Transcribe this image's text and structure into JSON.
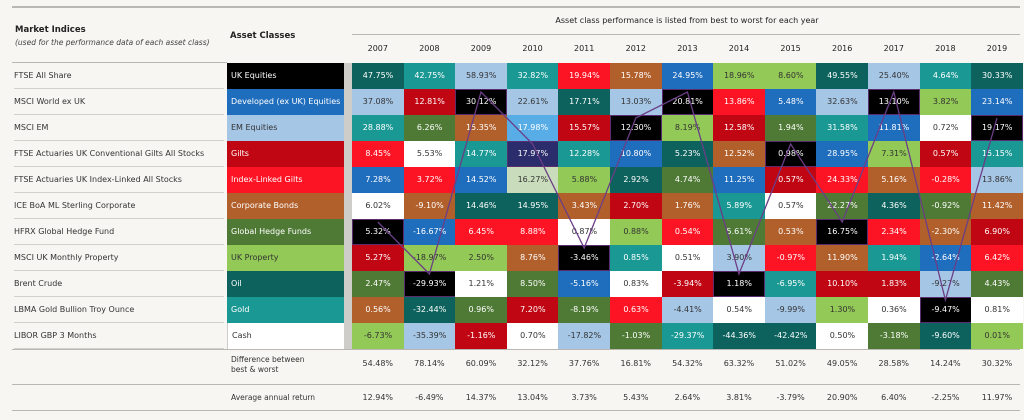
{
  "header": {
    "left_title": "Market Indices",
    "left_subtitle": "(used for the performance data of each asset class)",
    "asset_title": "Asset Classes",
    "table_title": "Asset class performance is listed from best to worst for each year"
  },
  "palette": {
    "UK": "#000000",
    "DEV": "#1f6dbd",
    "EM": "#a6c6e6",
    "GLT": "#bf0612",
    "ILG": "#fc1424",
    "CB": "#b1602b",
    "HF": "#4e7a35",
    "PR": "#93c957",
    "OIL": "#0d625d",
    "GLD": "#1a9893",
    "CSH": "#ffffff",
    "line": "#6b3e86"
  },
  "assets": [
    {
      "code": "UK",
      "index": "FTSE All Share",
      "label": "UK Equities"
    },
    {
      "code": "DEV",
      "index": "MSCI World ex UK",
      "label": "Developed (ex UK) Equities"
    },
    {
      "code": "EM",
      "index": "MSCI EM",
      "label": "EM Equities"
    },
    {
      "code": "GLT",
      "index": "FTSE Actuaries UK Conventional Gilts All Stocks",
      "label": "Gilts"
    },
    {
      "code": "ILG",
      "index": "FTSE Actuaries UK Index-Linked All Stocks",
      "label": "Index-Linked Gilts"
    },
    {
      "code": "CB",
      "index": "ICE BoA ML Sterling Corporate",
      "label": "Corporate Bonds"
    },
    {
      "code": "HF",
      "index": "HFRX Global Hedge Fund",
      "label": "Global Hedge Funds"
    },
    {
      "code": "PR",
      "index": "MSCI UK Monthly Property",
      "label": "UK Property"
    },
    {
      "code": "OIL",
      "index": "Brent Crude",
      "label": "Oil"
    },
    {
      "code": "GLD",
      "index": "LBMA Gold Bullion Troy Ounce",
      "label": "Gold"
    },
    {
      "code": "CSH",
      "index": "LIBOR GBP 3 Months",
      "label": "Cash"
    }
  ],
  "footer": {
    "diff_label_1": "Difference between",
    "diff_label_2": "best & worst",
    "avg_label": "Average annual return"
  },
  "chart_data": {
    "type": "table",
    "title": "Asset class performance is listed from best to worst for each year",
    "highlight_line_asset": "UK",
    "years": [
      "2007",
      "2008",
      "2009",
      "2010",
      "2011",
      "2012",
      "2013",
      "2014",
      "2015",
      "2016",
      "2017",
      "2018",
      "2019"
    ],
    "columns": [
      [
        [
          "47.75%",
          "OIL"
        ],
        [
          "37.08%",
          "EM"
        ],
        [
          "28.88%",
          "GLD"
        ],
        [
          "8.45%",
          "ILG"
        ],
        [
          "7.28%",
          "DEV"
        ],
        [
          "6.02%",
          "CSH"
        ],
        [
          "5.32%",
          "UK"
        ],
        [
          "5.27%",
          "GLT"
        ],
        [
          "2.47%",
          "HF"
        ],
        [
          "0.56%",
          "CB"
        ],
        [
          "-6.73%",
          "PR"
        ]
      ],
      [
        [
          "42.75%",
          "GLD"
        ],
        [
          "12.81%",
          "GLT"
        ],
        [
          "6.26%",
          "HF"
        ],
        [
          "5.53%",
          "CSH"
        ],
        [
          "3.72%",
          "ILG"
        ],
        [
          "-9.10%",
          "CB"
        ],
        [
          "-16.67%",
          "DEV"
        ],
        [
          "-18.97%",
          "PR"
        ],
        [
          "-29.93%",
          "UK"
        ],
        [
          "-32.44%",
          "OIL"
        ],
        [
          "-35.39%",
          "EM"
        ]
      ],
      [
        [
          "58.93%",
          "EM"
        ],
        [
          "30.12%",
          "UK"
        ],
        [
          "15.35%",
          "CB"
        ],
        [
          "14.77%",
          "GLD"
        ],
        [
          "14.52%",
          "DEV"
        ],
        [
          "14.46%",
          "OIL"
        ],
        [
          "6.45%",
          "ILG"
        ],
        [
          "2.50%",
          "PR"
        ],
        [
          "1.21%",
          "CSH"
        ],
        [
          "0.96%",
          "HF"
        ],
        [
          "-1.16%",
          "GLT"
        ]
      ],
      [
        [
          "32.82%",
          "GLD"
        ],
        [
          "22.61%",
          "EM"
        ],
        [
          "17.98%",
          "DEV",
          "#58ade6"
        ],
        [
          "17.97%",
          "UK",
          "#2a2c6c"
        ],
        [
          "16.27%",
          "PR",
          "#c9dcbb"
        ],
        [
          "14.95%",
          "OIL"
        ],
        [
          "8.88%",
          "ILG"
        ],
        [
          "8.76%",
          "CB"
        ],
        [
          "8.50%",
          "HF"
        ],
        [
          "7.20%",
          "GLT"
        ],
        [
          "0.70%",
          "CSH"
        ]
      ],
      [
        [
          "19.94%",
          "ILG"
        ],
        [
          "17.71%",
          "OIL"
        ],
        [
          "15.57%",
          "GLT"
        ],
        [
          "12.28%",
          "GLD"
        ],
        [
          "5.88%",
          "PR"
        ],
        [
          "3.43%",
          "CB"
        ],
        [
          "0.87%",
          "CSH"
        ],
        [
          "-3.46%",
          "UK"
        ],
        [
          "-5.16%",
          "DEV"
        ],
        [
          "-8.19%",
          "HF"
        ],
        [
          "-17.82%",
          "EM"
        ]
      ],
      [
        [
          "15.78%",
          "CB"
        ],
        [
          "13.03%",
          "EM"
        ],
        [
          "12.30%",
          "UK"
        ],
        [
          "10.80%",
          "DEV"
        ],
        [
          "2.92%",
          "OIL"
        ],
        [
          "2.70%",
          "GLT"
        ],
        [
          "0.88%",
          "PR"
        ],
        [
          "0.85%",
          "GLD"
        ],
        [
          "0.83%",
          "CSH"
        ],
        [
          "0.63%",
          "ILG"
        ],
        [
          "-1.03%",
          "HF"
        ]
      ],
      [
        [
          "24.95%",
          "DEV"
        ],
        [
          "20.81%",
          "UK"
        ],
        [
          "8.19%",
          "PR"
        ],
        [
          "5.23%",
          "OIL"
        ],
        [
          "4.74%",
          "HF"
        ],
        [
          "1.76%",
          "CB"
        ],
        [
          "0.54%",
          "ILG"
        ],
        [
          "0.51%",
          "CSH"
        ],
        [
          "-3.94%",
          "GLT"
        ],
        [
          "-4.41%",
          "EM"
        ],
        [
          "-29.37%",
          "GLD"
        ]
      ],
      [
        [
          "18.96%",
          "PR"
        ],
        [
          "13.86%",
          "ILG"
        ],
        [
          "12.58%",
          "GLT"
        ],
        [
          "12.52%",
          "CB"
        ],
        [
          "11.25%",
          "DEV"
        ],
        [
          "5.89%",
          "GLD"
        ],
        [
          "5.61%",
          "HF"
        ],
        [
          "3.90%",
          "EM"
        ],
        [
          "1.18%",
          "UK"
        ],
        [
          "0.54%",
          "CSH"
        ],
        [
          "-44.36%",
          "OIL"
        ]
      ],
      [
        [
          "8.60%",
          "PR"
        ],
        [
          "5.48%",
          "DEV"
        ],
        [
          "1.94%",
          "HF"
        ],
        [
          "0.98%",
          "UK"
        ],
        [
          "0.57%",
          "GLT"
        ],
        [
          "0.57%",
          "CSH"
        ],
        [
          "0.53%",
          "CB"
        ],
        [
          "-0.97%",
          "ILG"
        ],
        [
          "-6.95%",
          "GLD"
        ],
        [
          "-9.99%",
          "EM"
        ],
        [
          "-42.42%",
          "OIL"
        ]
      ],
      [
        [
          "49.55%",
          "OIL"
        ],
        [
          "32.63%",
          "EM"
        ],
        [
          "31.58%",
          "GLD"
        ],
        [
          "28.95%",
          "DEV"
        ],
        [
          "24.33%",
          "ILG"
        ],
        [
          "22.27%",
          "HF"
        ],
        [
          "16.75%",
          "UK"
        ],
        [
          "11.90%",
          "CB"
        ],
        [
          "10.10%",
          "GLT"
        ],
        [
          "1.30%",
          "PR"
        ],
        [
          "0.50%",
          "CSH"
        ]
      ],
      [
        [
          "25.40%",
          "EM"
        ],
        [
          "13.10%",
          "UK"
        ],
        [
          "11.81%",
          "DEV"
        ],
        [
          "7.31%",
          "PR"
        ],
        [
          "5.16%",
          "CB"
        ],
        [
          "4.36%",
          "OIL"
        ],
        [
          "2.34%",
          "ILG"
        ],
        [
          "1.94%",
          "GLD"
        ],
        [
          "1.83%",
          "GLT"
        ],
        [
          "0.36%",
          "CSH"
        ],
        [
          "-3.18%",
          "HF"
        ]
      ],
      [
        [
          "4.64%",
          "GLD"
        ],
        [
          "3.82%",
          "PR"
        ],
        [
          "0.72%",
          "CSH"
        ],
        [
          "0.57%",
          "GLT"
        ],
        [
          "-0.28%",
          "ILG"
        ],
        [
          "-0.92%",
          "HF"
        ],
        [
          "-2.30%",
          "CB"
        ],
        [
          "-2.64%",
          "DEV"
        ],
        [
          "-9.27%",
          "EM"
        ],
        [
          "-9.47%",
          "UK"
        ],
        [
          "-9.60%",
          "OIL"
        ]
      ],
      [
        [
          "30.33%",
          "OIL"
        ],
        [
          "23.14%",
          "DEV"
        ],
        [
          "19.17%",
          "UK"
        ],
        [
          "15.15%",
          "GLD"
        ],
        [
          "13.86%",
          "EM"
        ],
        [
          "11.42%",
          "CB"
        ],
        [
          "6.90%",
          "GLT"
        ],
        [
          "6.42%",
          "ILG"
        ],
        [
          "4.43%",
          "HF"
        ],
        [
          "0.81%",
          "CSH"
        ],
        [
          "0.01%",
          "PR"
        ]
      ]
    ],
    "difference_best_worst": [
      "54.48%",
      "78.14%",
      "60.09%",
      "32.12%",
      "37.76%",
      "16.81%",
      "54.32%",
      "63.32%",
      "51.02%",
      "49.05%",
      "28.58%",
      "14.24%",
      "30.32%"
    ],
    "average_annual_return": [
      "12.94%",
      "-6.49%",
      "14.37%",
      "13.04%",
      "3.73%",
      "5.43%",
      "2.64%",
      "3.81%",
      "-3.79%",
      "20.90%",
      "6.40%",
      "-2.25%",
      "11.97%"
    ]
  }
}
